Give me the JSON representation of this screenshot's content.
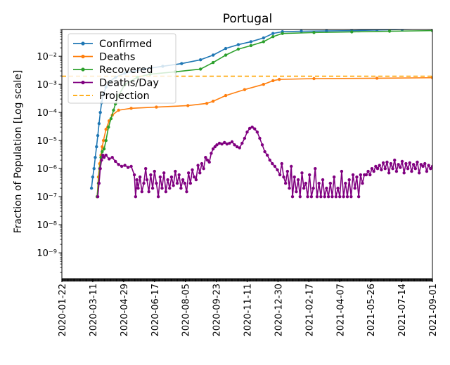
{
  "chart_data": {
    "type": "line",
    "title": "Portugal",
    "xlabel": "",
    "ylabel": "Fraction of Population [Log scale]",
    "yscale": "log",
    "ylim": [
      1.2e-10,
      0.09
    ],
    "xlim": [
      "2020-01-22",
      "2021-09-01"
    ],
    "x_tick_labels": [
      "2020-01-22",
      "2020-03-11",
      "2020-04-29",
      "2020-06-17",
      "2020-08-05",
      "2020-09-23",
      "2020-11-11",
      "2020-12-30",
      "2021-02-17",
      "2021-04-07",
      "2021-05-26",
      "2021-07-14",
      "2021-09-01"
    ],
    "y_ticks": [
      {
        "value": 1e-09,
        "label": "10⁻⁹"
      },
      {
        "value": 1e-08,
        "label": "10⁻⁸"
      },
      {
        "value": 1e-07,
        "label": "10⁻⁷"
      },
      {
        "value": 1e-06,
        "label": "10⁻⁶"
      },
      {
        "value": 1e-05,
        "label": "10⁻⁵"
      },
      {
        "value": 0.0001,
        "label": "10⁻⁴"
      },
      {
        "value": 0.001,
        "label": "10⁻³"
      },
      {
        "value": 0.01,
        "label": "10⁻²"
      }
    ],
    "legend_position": "top-left",
    "series": [
      {
        "name": "Confirmed",
        "color": "#1f77b4",
        "style": "line-marker",
        "points": [
          [
            47,
            2e-07
          ],
          [
            49,
            5e-07
          ],
          [
            51,
            1e-06
          ],
          [
            53,
            2.5e-06
          ],
          [
            55,
            6e-06
          ],
          [
            57,
            1.5e-05
          ],
          [
            59,
            4e-05
          ],
          [
            61,
            0.0001
          ],
          [
            63,
            0.00022
          ],
          [
            66,
            0.00045
          ],
          [
            70,
            0.0008
          ],
          [
            75,
            0.0012
          ],
          [
            85,
            0.0018
          ],
          [
            100,
            0.0025
          ],
          [
            130,
            0.0035
          ],
          [
            160,
            0.0044
          ],
          [
            190,
            0.0055
          ],
          [
            220,
            0.0075
          ],
          [
            240,
            0.011
          ],
          [
            260,
            0.019
          ],
          [
            280,
            0.026
          ],
          [
            300,
            0.033
          ],
          [
            320,
            0.045
          ],
          [
            335,
            0.065
          ],
          [
            350,
            0.075
          ],
          [
            380,
            0.078
          ],
          [
            420,
            0.08
          ],
          [
            460,
            0.082
          ],
          [
            500,
            0.086
          ],
          [
            540,
            0.09
          ],
          [
            588,
            0.094
          ]
        ]
      },
      {
        "name": "Deaths",
        "color": "#ff7f0e",
        "style": "line-marker",
        "points": [
          [
            56,
            1e-07
          ],
          [
            58,
            5e-07
          ],
          [
            60,
            1.5e-06
          ],
          [
            62,
            3e-06
          ],
          [
            64,
            6e-06
          ],
          [
            66,
            1e-05
          ],
          [
            70,
            2.5e-05
          ],
          [
            75,
            5e-05
          ],
          [
            80,
            8e-05
          ],
          [
            90,
            0.00012
          ],
          [
            110,
            0.00014
          ],
          [
            150,
            0.000155
          ],
          [
            200,
            0.000175
          ],
          [
            230,
            0.00021
          ],
          [
            240,
            0.00025
          ],
          [
            260,
            0.0004
          ],
          [
            290,
            0.00065
          ],
          [
            320,
            0.001
          ],
          [
            335,
            0.00135
          ],
          [
            345,
            0.0015
          ],
          [
            400,
            0.0016
          ],
          [
            500,
            0.00165
          ],
          [
            588,
            0.00172
          ]
        ]
      },
      {
        "name": "Recovered",
        "color": "#2ca02c",
        "style": "line-marker",
        "points": [
          [
            56,
            1e-07
          ],
          [
            58,
            3e-07
          ],
          [
            60,
            1e-06
          ],
          [
            62,
            2.5e-06
          ],
          [
            64,
            4e-06
          ],
          [
            67,
            5e-06
          ],
          [
            70,
            1e-05
          ],
          [
            74,
            3e-05
          ],
          [
            78,
            6e-05
          ],
          [
            82,
            0.00012
          ],
          [
            85,
            0.0002
          ],
          [
            90,
            0.0004
          ],
          [
            100,
            0.001
          ],
          [
            120,
            0.0018
          ],
          [
            140,
            0.0023
          ],
          [
            180,
            0.0028
          ],
          [
            220,
            0.0035
          ],
          [
            240,
            0.006
          ],
          [
            260,
            0.011
          ],
          [
            280,
            0.018
          ],
          [
            300,
            0.024
          ],
          [
            320,
            0.033
          ],
          [
            335,
            0.05
          ],
          [
            350,
            0.065
          ],
          [
            400,
            0.07
          ],
          [
            460,
            0.074
          ],
          [
            520,
            0.078
          ],
          [
            588,
            0.082
          ]
        ]
      },
      {
        "name": "Deaths/Day",
        "color": "#800080",
        "style": "line-marker",
        "points": [
          [
            57,
            1e-07
          ],
          [
            59,
            3e-07
          ],
          [
            61,
            1e-06
          ],
          [
            63,
            2e-06
          ],
          [
            65,
            3e-06
          ],
          [
            67,
            2.5e-06
          ],
          [
            70,
            3e-06
          ],
          [
            75,
            2.2e-06
          ],
          [
            80,
            2.5e-06
          ],
          [
            85,
            1.8e-06
          ],
          [
            90,
            1.4e-06
          ],
          [
            95,
            1.2e-06
          ],
          [
            100,
            1.3e-06
          ],
          [
            105,
            1.1e-06
          ],
          [
            110,
            1.2e-06
          ],
          [
            115,
            6e-07
          ],
          [
            117,
            1e-07
          ],
          [
            119,
            4e-07
          ],
          [
            121,
            2e-07
          ],
          [
            124,
            5e-07
          ],
          [
            127,
            1.5e-07
          ],
          [
            130,
            3e-07
          ],
          [
            133,
            1e-06
          ],
          [
            135,
            4e-07
          ],
          [
            138,
            1.5e-07
          ],
          [
            141,
            6e-07
          ],
          [
            144,
            2e-07
          ],
          [
            147,
            8e-07
          ],
          [
            150,
            3e-07
          ],
          [
            153,
            1e-07
          ],
          [
            156,
            5e-07
          ],
          [
            159,
            2e-07
          ],
          [
            162,
            7e-07
          ],
          [
            165,
            1.5e-07
          ],
          [
            168,
            4e-07
          ],
          [
            171,
            2e-07
          ],
          [
            174,
            5e-07
          ],
          [
            177,
            2.5e-07
          ],
          [
            180,
            8e-07
          ],
          [
            183,
            3e-07
          ],
          [
            186,
            6e-07
          ],
          [
            189,
            2e-07
          ],
          [
            192,
            4e-07
          ],
          [
            195,
            3e-07
          ],
          [
            198,
            1.5e-07
          ],
          [
            201,
            7e-07
          ],
          [
            204,
            3e-07
          ],
          [
            207,
            9e-07
          ],
          [
            210,
            5e-07
          ],
          [
            213,
            4e-07
          ],
          [
            216,
            1.3e-06
          ],
          [
            219,
            7e-07
          ],
          [
            222,
            1.5e-06
          ],
          [
            225,
            1e-06
          ],
          [
            228,
            2.5e-06
          ],
          [
            231,
            2e-06
          ],
          [
            234,
            1.7e-06
          ],
          [
            237,
            3.5e-06
          ],
          [
            240,
            5e-06
          ],
          [
            243,
            6e-06
          ],
          [
            246,
            7e-06
          ],
          [
            250,
            8e-06
          ],
          [
            254,
            7.5e-06
          ],
          [
            258,
            8.5e-06
          ],
          [
            262,
            7.5e-06
          ],
          [
            266,
            8e-06
          ],
          [
            270,
            9e-06
          ],
          [
            274,
            7e-06
          ],
          [
            278,
            6e-06
          ],
          [
            282,
            5.5e-06
          ],
          [
            286,
            8e-06
          ],
          [
            290,
            1.2e-05
          ],
          [
            294,
            2e-05
          ],
          [
            298,
            2.7e-05
          ],
          [
            302,
            3e-05
          ],
          [
            306,
            2.6e-05
          ],
          [
            310,
            2e-05
          ],
          [
            314,
            1.2e-05
          ],
          [
            318,
            7e-06
          ],
          [
            322,
            4e-06
          ],
          [
            326,
            3e-06
          ],
          [
            330,
            2e-06
          ],
          [
            334,
            1.5e-06
          ],
          [
            338,
            1.2e-06
          ],
          [
            342,
            9e-07
          ],
          [
            346,
            6e-07
          ],
          [
            349,
            1.5e-06
          ],
          [
            352,
            5e-07
          ],
          [
            355,
            3e-07
          ],
          [
            358,
            8e-07
          ],
          [
            361,
            2e-07
          ],
          [
            364,
            1.2e-06
          ],
          [
            366,
            1e-07
          ],
          [
            369,
            5e-07
          ],
          [
            372,
            1.5e-07
          ],
          [
            375,
            4e-07
          ],
          [
            378,
            1e-07
          ],
          [
            381,
            7e-07
          ],
          [
            384,
            2e-07
          ],
          [
            387,
            3e-07
          ],
          [
            390,
            1e-07
          ],
          [
            393,
            6e-07
          ],
          [
            396,
            1e-07
          ],
          [
            399,
            2e-07
          ],
          [
            402,
            1e-06
          ],
          [
            405,
            1e-07
          ],
          [
            408,
            3e-07
          ],
          [
            411,
            1e-07
          ],
          [
            414,
            4e-07
          ],
          [
            417,
            1e-07
          ],
          [
            420,
            2e-07
          ],
          [
            423,
            1e-07
          ],
          [
            426,
            3e-07
          ],
          [
            429,
            1e-07
          ],
          [
            432,
            5e-07
          ],
          [
            435,
            1e-07
          ],
          [
            438,
            2e-07
          ],
          [
            441,
            1e-07
          ],
          [
            444,
            8e-07
          ],
          [
            447,
            1e-07
          ],
          [
            450,
            3e-07
          ],
          [
            453,
            1e-07
          ],
          [
            456,
            4e-07
          ],
          [
            459,
            1e-07
          ],
          [
            462,
            6e-07
          ],
          [
            465,
            2e-07
          ],
          [
            468,
            5e-07
          ],
          [
            471,
            1e-07
          ],
          [
            474,
            6e-07
          ],
          [
            477,
            3e-07
          ],
          [
            480,
            6e-07
          ],
          [
            483,
            6e-07
          ],
          [
            486,
            8e-07
          ],
          [
            489,
            6e-07
          ],
          [
            492,
            1e-06
          ],
          [
            495,
            8e-07
          ],
          [
            498,
            1.2e-06
          ],
          [
            501,
            1e-06
          ],
          [
            504,
            1.3e-06
          ],
          [
            507,
            9e-07
          ],
          [
            510,
            1.6e-06
          ],
          [
            513,
            1e-06
          ],
          [
            516,
            1.7e-06
          ],
          [
            519,
            7e-07
          ],
          [
            522,
            1.5e-06
          ],
          [
            525,
            1e-06
          ],
          [
            528,
            2e-06
          ],
          [
            531,
            8e-07
          ],
          [
            534,
            1.4e-06
          ],
          [
            537,
            1.1e-06
          ],
          [
            540,
            1.8e-06
          ],
          [
            543,
            7e-07
          ],
          [
            546,
            1.5e-06
          ],
          [
            549,
            1e-06
          ],
          [
            552,
            1.6e-06
          ],
          [
            555,
            8e-07
          ],
          [
            558,
            1.4e-06
          ],
          [
            561,
            1e-06
          ],
          [
            564,
            1.7e-06
          ],
          [
            567,
            7e-07
          ],
          [
            570,
            1.4e-06
          ],
          [
            573,
            1.2e-06
          ],
          [
            576,
            1.5e-06
          ],
          [
            579,
            8e-07
          ],
          [
            582,
            1.3e-06
          ],
          [
            585,
            1e-06
          ],
          [
            588,
            1.2e-06
          ]
        ]
      },
      {
        "name": "Projection",
        "color": "#ffa500",
        "style": "dashed",
        "points": [
          [
            0,
            0.00195
          ],
          [
            588,
            0.00195
          ]
        ]
      }
    ]
  }
}
